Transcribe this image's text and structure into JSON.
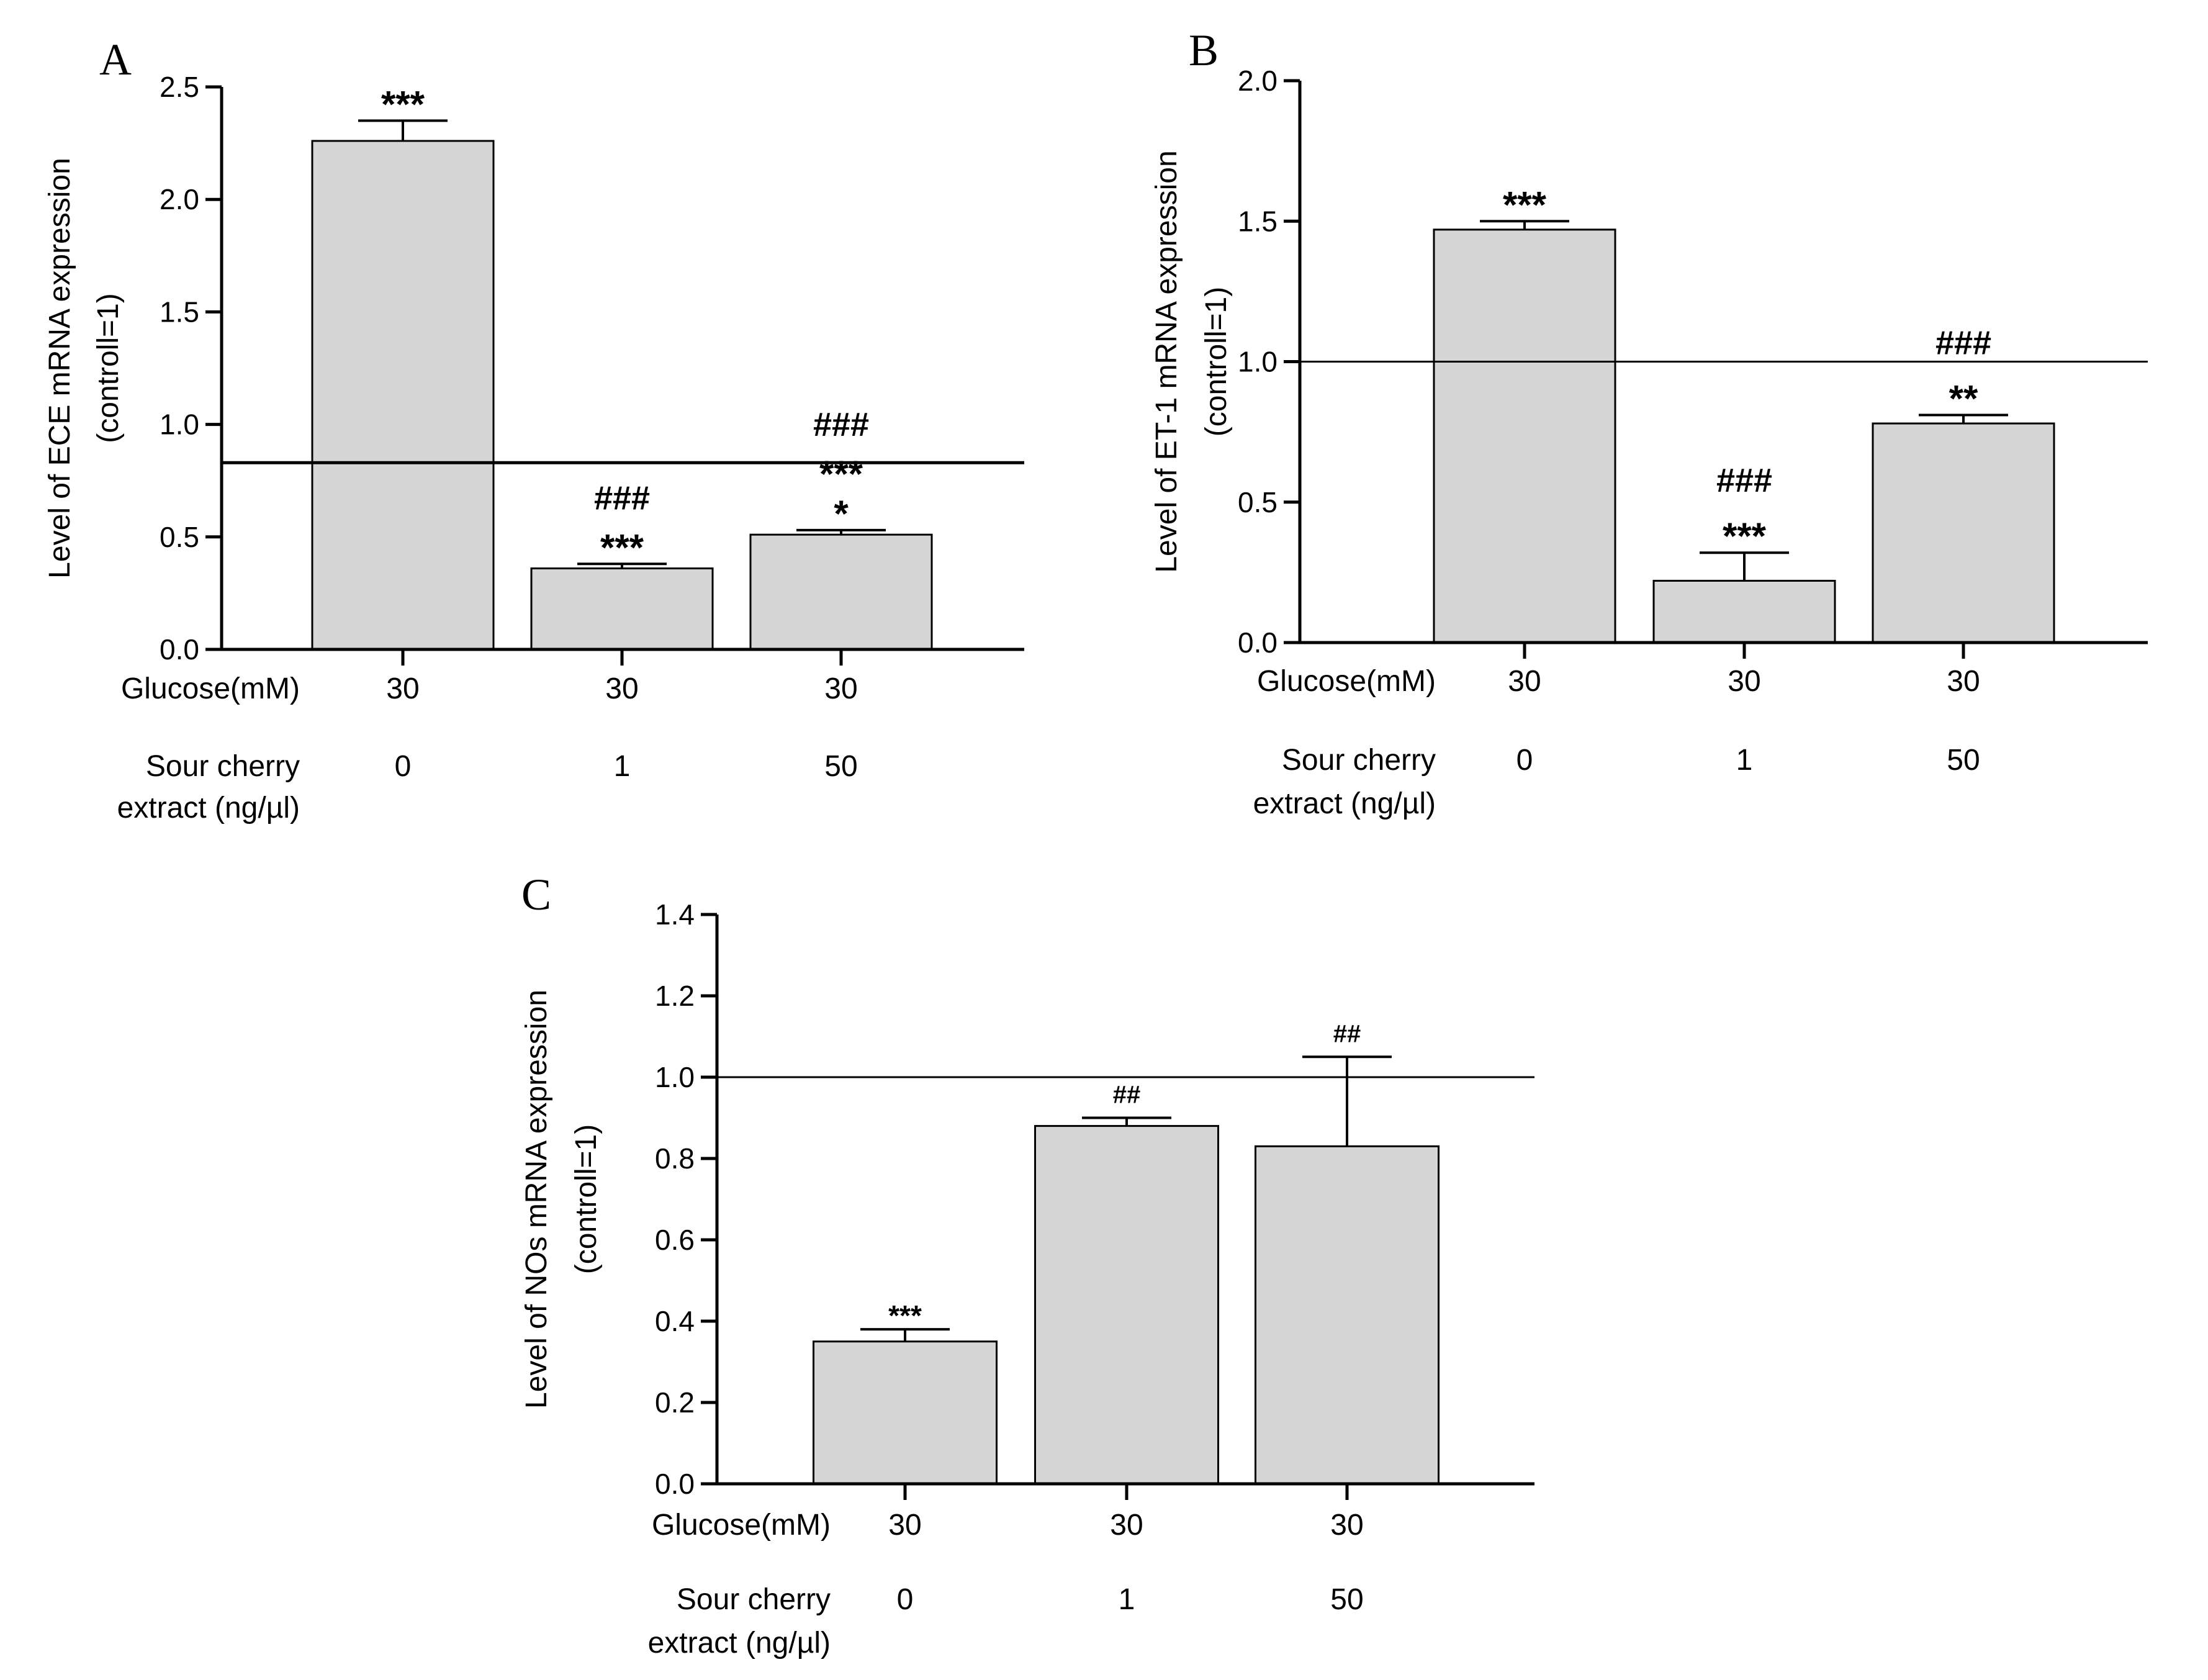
{
  "chart_data": [
    {
      "type": "bar",
      "panel_label": "A",
      "title": "",
      "ylabel": [
        "Level of ECE mRNA expression",
        "(controll=1)"
      ],
      "ylim": [
        0,
        2.5
      ],
      "yticks": [
        "0.0",
        "0.5",
        "1.0",
        "1.5",
        "2.0",
        "2.5"
      ],
      "row_labels": {
        "glucose": "Glucose(mM)",
        "extract": [
          "Sour cherry",
          "extract (ng/µl)"
        ]
      },
      "categories": [
        {
          "glucose": "30",
          "extract": "0"
        },
        {
          "glucose": "30",
          "extract": "1"
        },
        {
          "glucose": "30",
          "extract": "50"
        }
      ],
      "values": [
        2.26,
        0.36,
        0.51
      ],
      "errors": [
        0.09,
        0.02,
        0.02
      ],
      "reference_line": 0.83,
      "annotations": [
        [
          "***"
        ],
        [
          "***",
          "###"
        ],
        [
          "*",
          "***",
          "###"
        ]
      ]
    },
    {
      "type": "bar",
      "panel_label": "B",
      "title": "",
      "ylabel": [
        "Level of ET-1 mRNA expression",
        "(controll=1)"
      ],
      "ylim": [
        0,
        2.0
      ],
      "yticks": [
        "0.0",
        "0.5",
        "1.0",
        "1.5",
        "2.0"
      ],
      "row_labels": {
        "glucose": "Glucose(mM)",
        "extract": [
          "Sour cherry",
          "extract (ng/µl)"
        ]
      },
      "categories": [
        {
          "glucose": "30",
          "extract": "0"
        },
        {
          "glucose": "30",
          "extract": "1"
        },
        {
          "glucose": "30",
          "extract": "50"
        }
      ],
      "values": [
        1.47,
        0.22,
        0.78
      ],
      "errors": [
        0.03,
        0.1,
        0.03
      ],
      "reference_line": 1.0,
      "annotations": [
        [
          "***"
        ],
        [
          "***",
          "###"
        ],
        [
          "**",
          "###"
        ]
      ]
    },
    {
      "type": "bar",
      "panel_label": "C",
      "title": "",
      "ylabel": [
        "Level of NOs mRNA expression",
        "(controll=1)"
      ],
      "ylim": [
        0,
        1.4
      ],
      "yticks": [
        "0.0",
        "0.2",
        "0.4",
        "0.6",
        "0.8",
        "1.0",
        "1.2",
        "1.4"
      ],
      "row_labels": {
        "glucose": "Glucose(mM)",
        "extract": [
          "Sour cherry",
          "extract (ng/µl)"
        ]
      },
      "categories": [
        {
          "glucose": "30",
          "extract": "0"
        },
        {
          "glucose": "30",
          "extract": "1"
        },
        {
          "glucose": "30",
          "extract": "50"
        }
      ],
      "values": [
        0.35,
        0.88,
        0.83
      ],
      "errors": [
        0.03,
        0.02,
        0.22
      ],
      "reference_line": 1.0,
      "annotations": [
        [
          "***"
        ],
        [
          "##"
        ],
        [
          "##"
        ]
      ]
    }
  ]
}
